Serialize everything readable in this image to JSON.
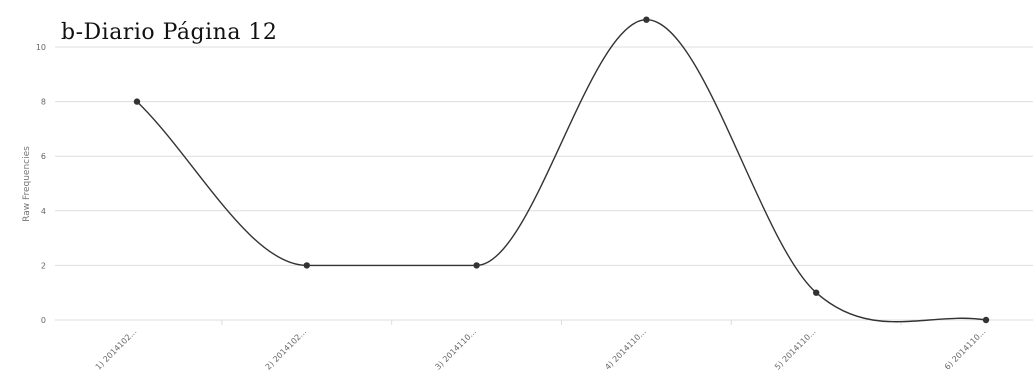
{
  "chart_data": {
    "type": "line",
    "title": "b-Diario Página 12",
    "xlabel": "",
    "ylabel": "Raw Frequencies",
    "categories": [
      "1) 2014102...",
      "2) 2014102...",
      "3) 2014110...",
      "4) 2014110...",
      "5) 2014110...",
      "6) 2014110..."
    ],
    "series": [
      {
        "values": [
          8,
          2,
          2,
          11,
          1,
          0
        ]
      }
    ],
    "yticks": [
      0,
      2,
      4,
      6,
      8,
      10
    ],
    "ylim": [
      0,
      11
    ],
    "grid": true,
    "legend": "none",
    "line_color": "#333333",
    "marker_color": "#333333",
    "grid_color": "#dddddd"
  }
}
